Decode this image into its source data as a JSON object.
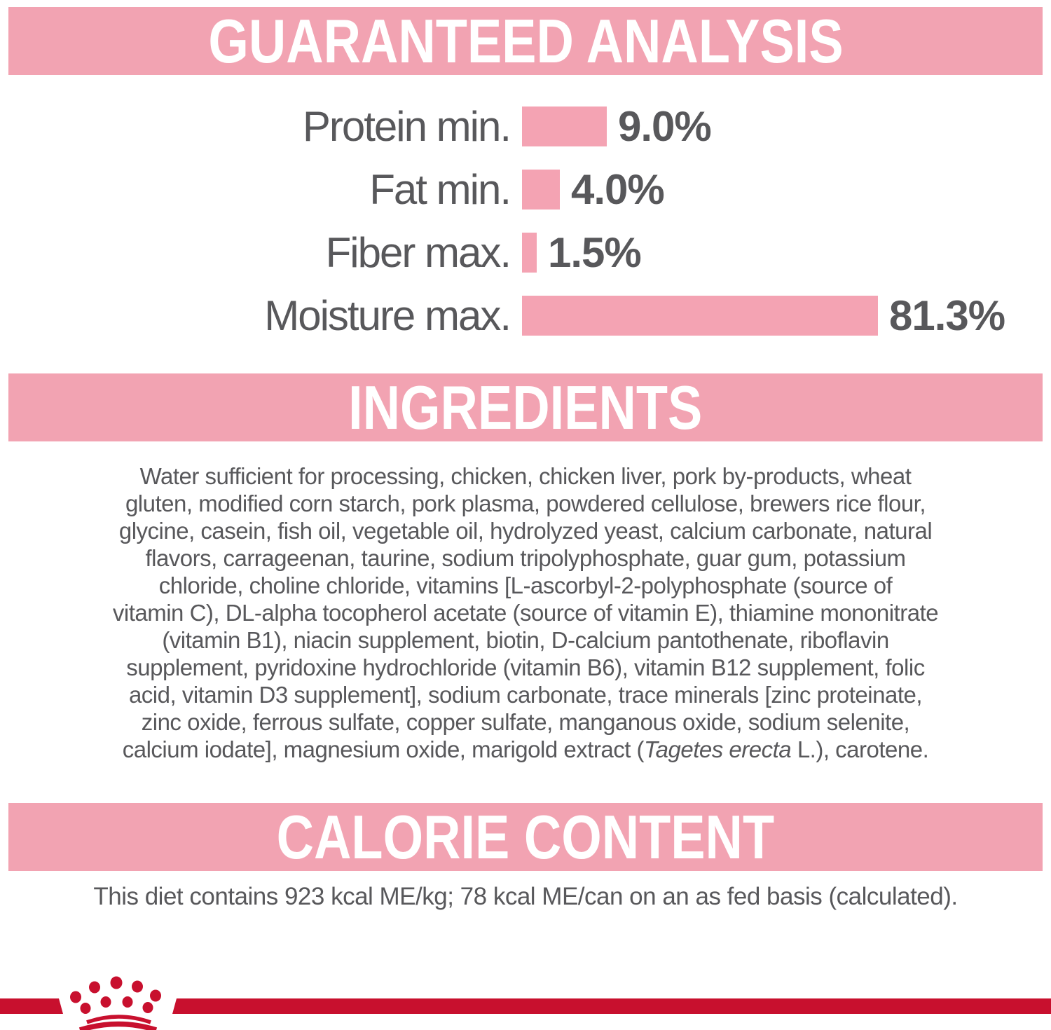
{
  "colors": {
    "banner_pink": "#F2A3B2",
    "bar_pink": "#F4A3B3",
    "text_gray": "#58585B",
    "brand_red": "#C8102E",
    "banner_text_white": "#FFFFFF"
  },
  "sections": {
    "guaranteed_analysis": {
      "title": "GUARANTEED ANALYSIS",
      "rows": [
        {
          "label": "Protein min.",
          "value": 9.0,
          "display": "9.0%"
        },
        {
          "label": "Fat min.",
          "value": 4.0,
          "display": "4.0%"
        },
        {
          "label": "Fiber max.",
          "value": 1.5,
          "display": "1.5%"
        },
        {
          "label": "Moisture max.",
          "value": 81.3,
          "display": "81.3%"
        }
      ]
    },
    "ingredients": {
      "title": "INGREDIENTS",
      "italic_phrase": "Tagetes erecta",
      "lines": [
        "Water sufficient for processing, chicken, chicken liver, pork by-products, wheat",
        "gluten, modified corn starch, pork plasma, powdered cellulose, brewers rice flour,",
        "glycine, casein, fish oil, vegetable oil, hydrolyzed yeast, calcium carbonate, natural",
        "flavors, carrageenan, taurine, sodium tripolyphosphate, guar gum, potassium",
        "chloride, choline chloride, vitamins [L-ascorbyl-2-polyphosphate (source of",
        "vitamin C), DL-alpha tocopherol acetate (source of vitamin E), thiamine mononitrate",
        "(vitamin B1), niacin supplement, biotin, D-calcium pantothenate, riboflavin",
        "supplement, pyridoxine hydrochloride (vitamin B6), vitamin B12 supplement, folic",
        "acid, vitamin D3 supplement], sodium carbonate, trace minerals [zinc proteinate,",
        "zinc oxide, ferrous sulfate, copper sulfate, manganous oxide, sodium selenite,",
        "calcium iodate], magnesium oxide, marigold extract (Tagetes erecta L.), carotene."
      ]
    },
    "calorie_content": {
      "title": "CALORIE CONTENT",
      "text": "This diet contains 923 kcal ME/kg; 78 kcal ME/can on an as fed basis (calculated)."
    }
  },
  "footer": {
    "logo": "royal-canin-crown-logo"
  },
  "chart_data": {
    "type": "bar",
    "orientation": "horizontal",
    "categories": [
      "Protein min.",
      "Fat min.",
      "Fiber max.",
      "Moisture max."
    ],
    "values": [
      9.0,
      4.0,
      1.5,
      81.3
    ],
    "value_labels": [
      "9.0%",
      "4.0%",
      "1.5%",
      "81.3%"
    ],
    "title": "GUARANTEED ANALYSIS",
    "xlabel": "",
    "ylabel": "",
    "bar_color": "#F4A3B3",
    "grid": false,
    "legend": false,
    "note": "bar lengths capped; moisture bar not to scale with others"
  }
}
